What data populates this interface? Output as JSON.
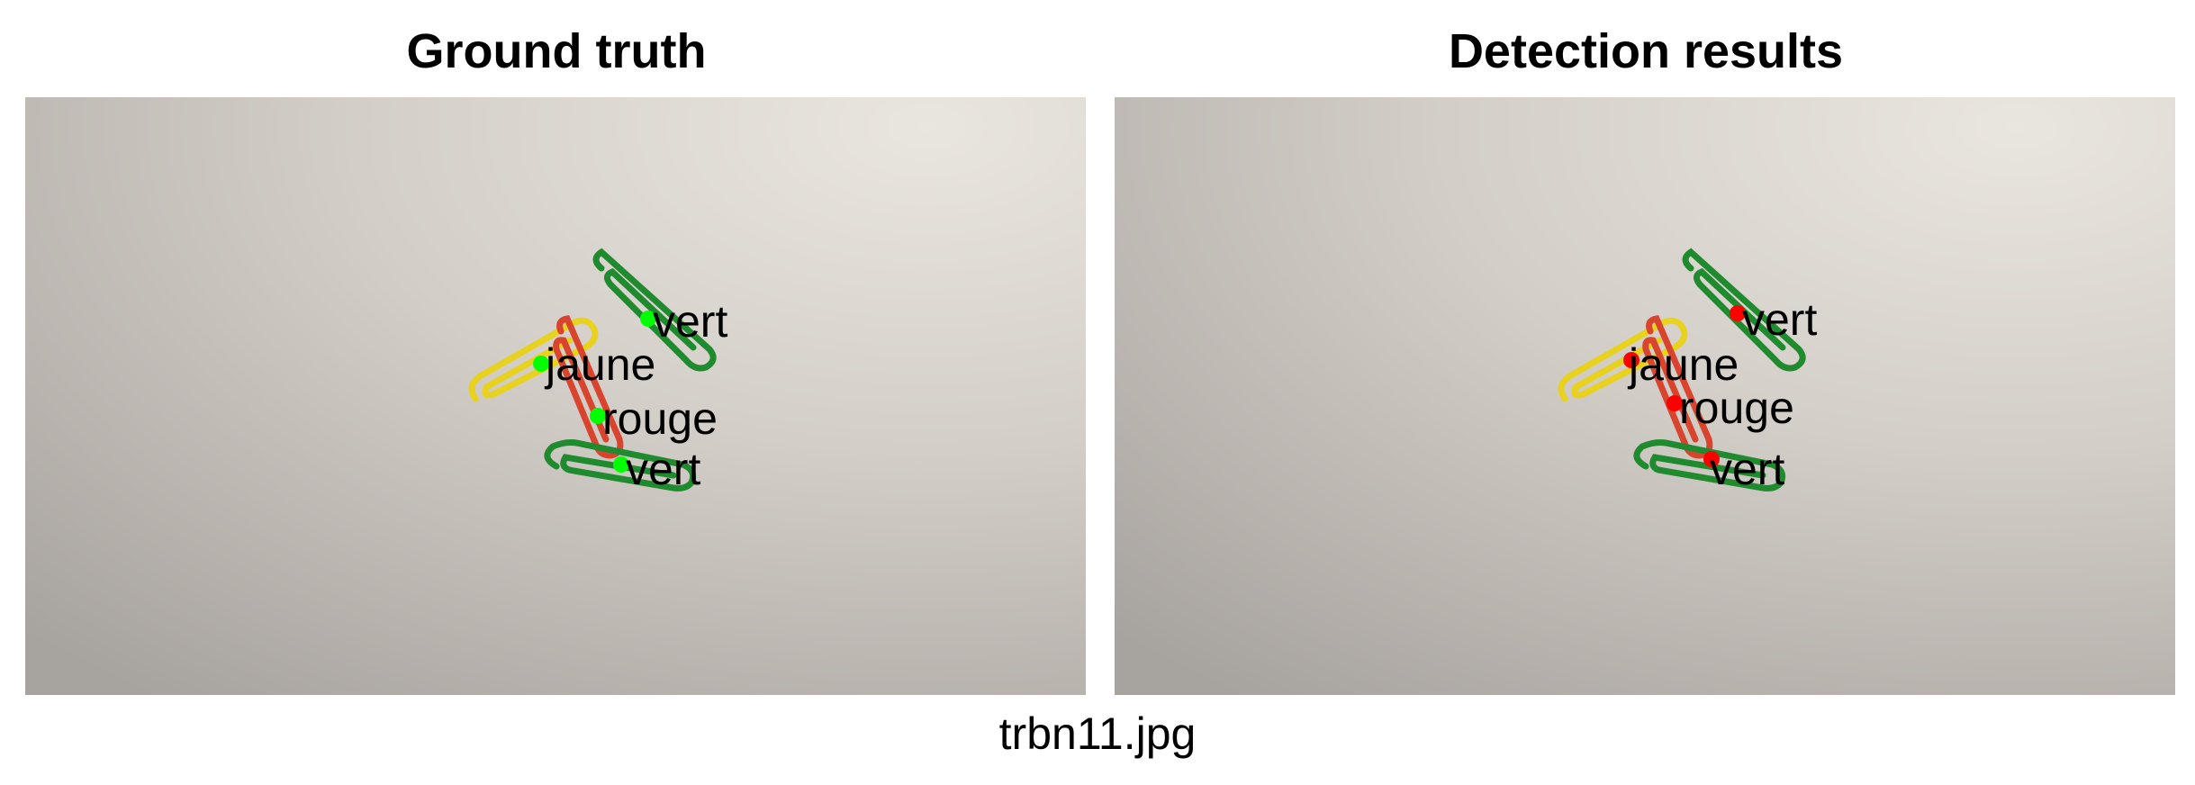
{
  "panels": [
    {
      "title": "Ground truth",
      "marker_color": "#00ff00",
      "detections": [
        {
          "label": "vert"
        },
        {
          "label": "jaune"
        },
        {
          "label": "rouge"
        },
        {
          "label": "vert"
        }
      ]
    },
    {
      "title": "Detection results",
      "marker_color": "#ff0000",
      "detections": [
        {
          "label": "vert"
        },
        {
          "label": "jaune"
        },
        {
          "label": "rouge"
        },
        {
          "label": "vert"
        }
      ]
    }
  ],
  "caption": "trbn11.jpg",
  "colors": {
    "clip_green": "#1f8a2e",
    "clip_yellow": "#e8d21e",
    "clip_red": "#d9442e"
  }
}
